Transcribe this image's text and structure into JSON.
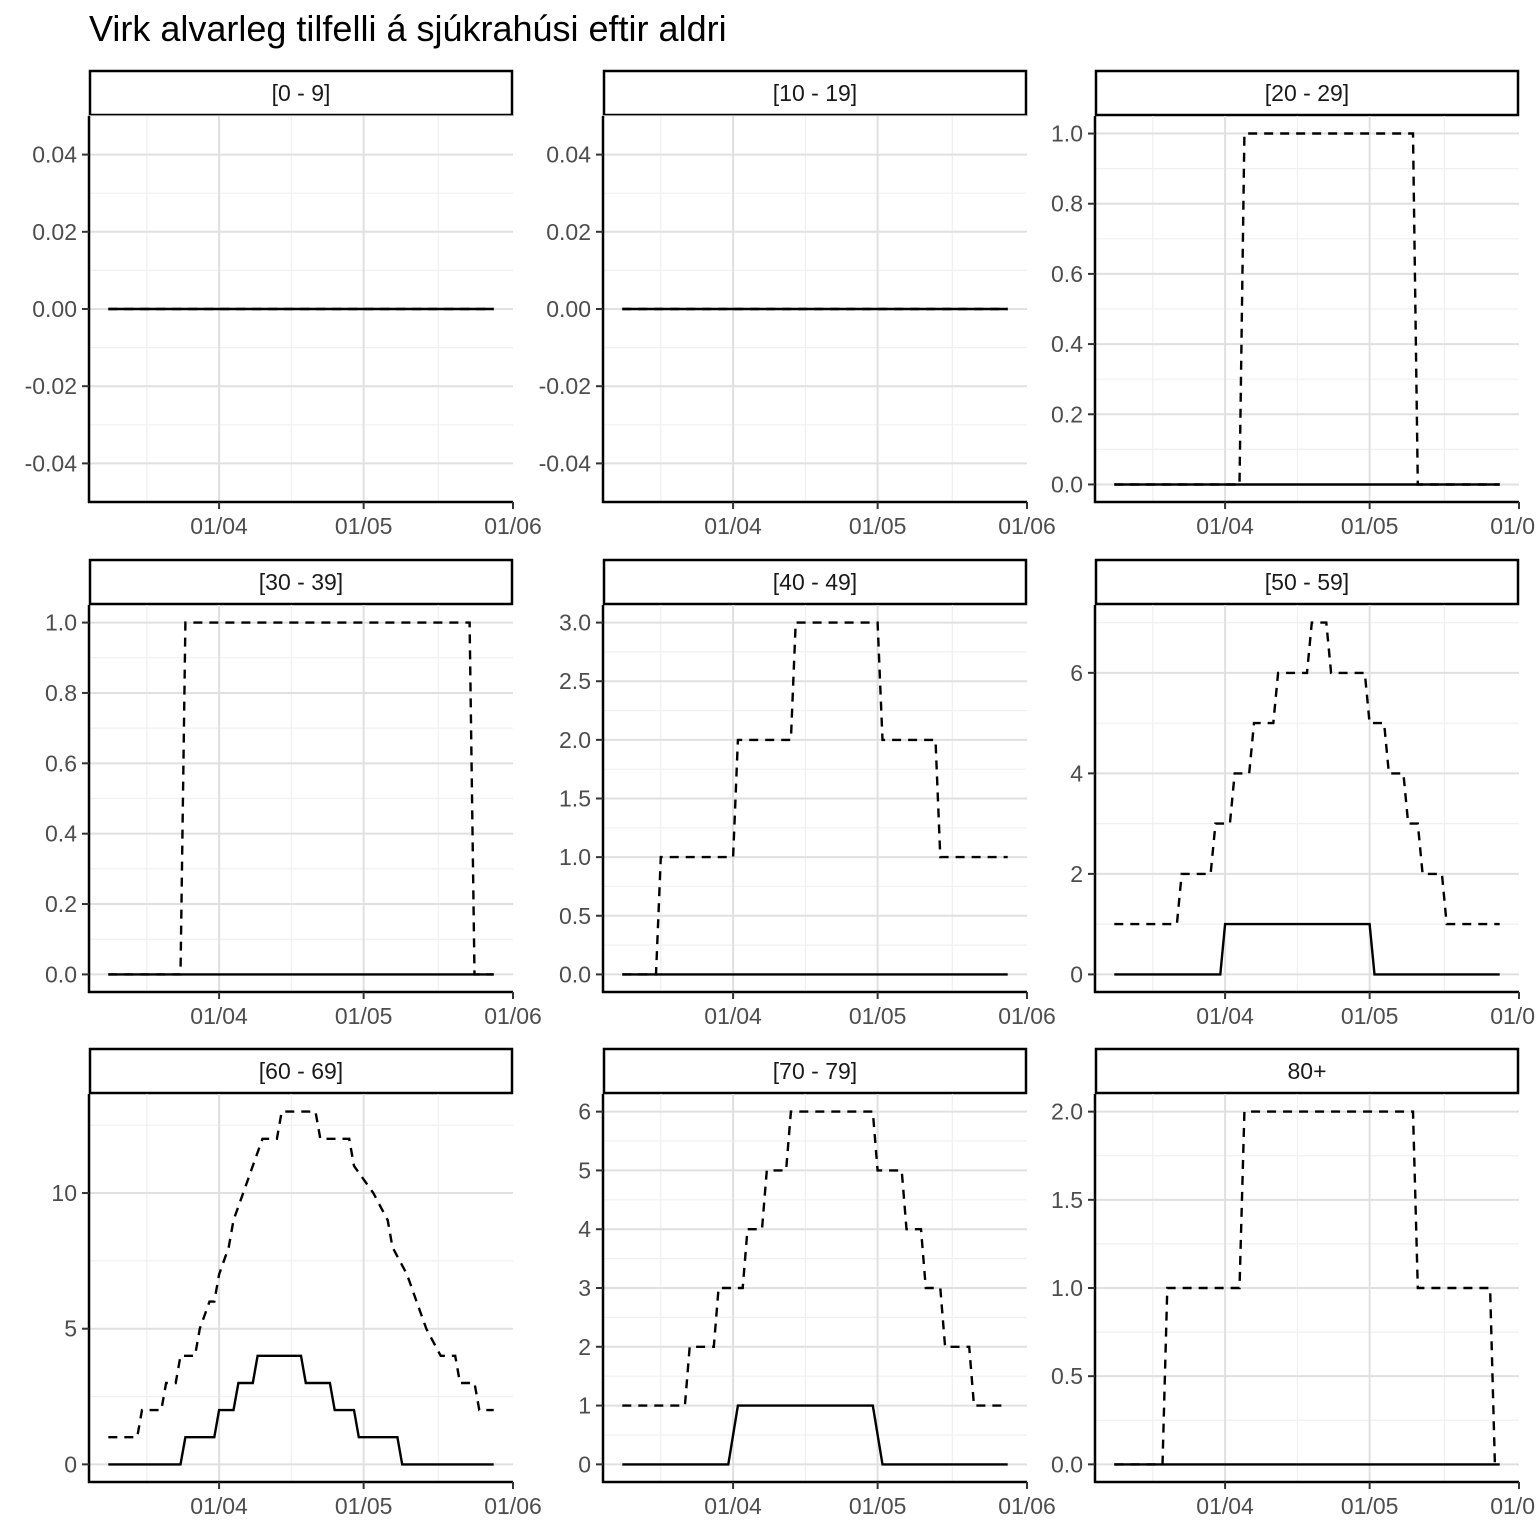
{
  "chart_data": {
    "type": "line",
    "title": "Virk alvarleg tilfelli á sjúkrahúsi eftir aldri",
    "xlabel": "",
    "ylabel": "",
    "x_tick_labels": [
      "01/04",
      "01/05",
      "01/06"
    ],
    "x_tick_dates": [
      "2020-04-01",
      "2020-05-01",
      "2020-06-01"
    ],
    "xlim": [
      "2020-03-05",
      "2020-06-01"
    ],
    "grid": true,
    "legend": "none",
    "series_styles": {
      "median": "solid",
      "upper": "dashed"
    },
    "panels": [
      {
        "label": "[0 - 9]",
        "ylim": [
          -0.05,
          0.05
        ],
        "y_ticks": [
          -0.04,
          -0.02,
          0.0,
          0.02,
          0.04
        ],
        "y_tick_labels": [
          "-0.04",
          "-0.02",
          "0.00",
          "0.02",
          "0.04"
        ],
        "series": [
          {
            "style": "solid",
            "points": [
              [
                "2020-03-09",
                0
              ],
              [
                "2020-05-28",
                0
              ]
            ]
          },
          {
            "style": "dashed",
            "points": [
              [
                "2020-03-09",
                0
              ],
              [
                "2020-05-28",
                0
              ]
            ]
          }
        ]
      },
      {
        "label": "[10 - 19]",
        "ylim": [
          -0.05,
          0.05
        ],
        "y_ticks": [
          -0.04,
          -0.02,
          0.0,
          0.02,
          0.04
        ],
        "y_tick_labels": [
          "-0.04",
          "-0.02",
          "0.00",
          "0.02",
          "0.04"
        ],
        "series": [
          {
            "style": "solid",
            "points": [
              [
                "2020-03-09",
                0
              ],
              [
                "2020-05-28",
                0
              ]
            ]
          },
          {
            "style": "dashed",
            "points": [
              [
                "2020-03-09",
                0
              ],
              [
                "2020-05-28",
                0
              ]
            ]
          }
        ]
      },
      {
        "label": "[20 - 29]",
        "ylim": [
          -0.05,
          1.05
        ],
        "y_ticks": [
          0.0,
          0.2,
          0.4,
          0.6,
          0.8,
          1.0
        ],
        "y_tick_labels": [
          "0.0",
          "0.2",
          "0.4",
          "0.6",
          "0.8",
          "1.0"
        ],
        "series": [
          {
            "style": "solid",
            "points": [
              [
                "2020-03-09",
                0
              ],
              [
                "2020-05-28",
                0
              ]
            ]
          },
          {
            "style": "dashed",
            "points": [
              [
                "2020-03-09",
                0
              ],
              [
                "2020-04-04",
                0
              ],
              [
                "2020-04-05",
                1
              ],
              [
                "2020-05-10",
                1
              ],
              [
                "2020-05-11",
                0
              ],
              [
                "2020-05-28",
                0
              ]
            ]
          }
        ]
      },
      {
        "label": "[30 - 39]",
        "ylim": [
          -0.05,
          1.05
        ],
        "y_ticks": [
          0.0,
          0.2,
          0.4,
          0.6,
          0.8,
          1.0
        ],
        "y_tick_labels": [
          "0.0",
          "0.2",
          "0.4",
          "0.6",
          "0.8",
          "1.0"
        ],
        "series": [
          {
            "style": "solid",
            "points": [
              [
                "2020-03-09",
                0
              ],
              [
                "2020-05-28",
                0
              ]
            ]
          },
          {
            "style": "dashed",
            "points": [
              [
                "2020-03-09",
                0
              ],
              [
                "2020-03-24",
                0
              ],
              [
                "2020-03-25",
                1
              ],
              [
                "2020-05-23",
                1
              ],
              [
                "2020-05-24",
                0
              ],
              [
                "2020-05-28",
                0
              ]
            ]
          }
        ]
      },
      {
        "label": "[40 - 49]",
        "ylim": [
          -0.15,
          3.15
        ],
        "y_ticks": [
          0.0,
          0.5,
          1.0,
          1.5,
          2.0,
          2.5,
          3.0
        ],
        "y_tick_labels": [
          "0.0",
          "0.5",
          "1.0",
          "1.5",
          "2.0",
          "2.5",
          "3.0"
        ],
        "series": [
          {
            "style": "solid",
            "points": [
              [
                "2020-03-09",
                0
              ],
              [
                "2020-05-28",
                0
              ]
            ]
          },
          {
            "style": "dashed",
            "points": [
              [
                "2020-03-09",
                0
              ],
              [
                "2020-03-16",
                0
              ],
              [
                "2020-03-17",
                1
              ],
              [
                "2020-04-01",
                1
              ],
              [
                "2020-04-02",
                2
              ],
              [
                "2020-04-13",
                2
              ],
              [
                "2020-04-14",
                3
              ],
              [
                "2020-05-01",
                3
              ],
              [
                "2020-05-02",
                2
              ],
              [
                "2020-05-13",
                2
              ],
              [
                "2020-05-14",
                1
              ],
              [
                "2020-05-28",
                1
              ]
            ]
          }
        ]
      },
      {
        "label": "[50 - 59]",
        "ylim": [
          -0.35,
          7.35
        ],
        "y_ticks": [
          0,
          2,
          4,
          6
        ],
        "y_tick_labels": [
          "0",
          "2",
          "4",
          "6"
        ],
        "series": [
          {
            "style": "solid",
            "points": [
              [
                "2020-03-09",
                0
              ],
              [
                "2020-03-31",
                0
              ],
              [
                "2020-04-01",
                1
              ],
              [
                "2020-05-01",
                1
              ],
              [
                "2020-05-02",
                0
              ],
              [
                "2020-05-28",
                0
              ]
            ]
          },
          {
            "style": "dashed",
            "points": [
              [
                "2020-03-09",
                1
              ],
              [
                "2020-03-22",
                1
              ],
              [
                "2020-03-23",
                2
              ],
              [
                "2020-03-29",
                2
              ],
              [
                "2020-03-30",
                3
              ],
              [
                "2020-04-02",
                3
              ],
              [
                "2020-04-03",
                4
              ],
              [
                "2020-04-06",
                4
              ],
              [
                "2020-04-07",
                5
              ],
              [
                "2020-04-11",
                5
              ],
              [
                "2020-04-12",
                6
              ],
              [
                "2020-04-18",
                6
              ],
              [
                "2020-04-19",
                7
              ],
              [
                "2020-04-22",
                7
              ],
              [
                "2020-04-23",
                6
              ],
              [
                "2020-04-30",
                6
              ],
              [
                "2020-05-01",
                5
              ],
              [
                "2020-05-04",
                5
              ],
              [
                "2020-05-05",
                4
              ],
              [
                "2020-05-08",
                4
              ],
              [
                "2020-05-09",
                3
              ],
              [
                "2020-05-11",
                3
              ],
              [
                "2020-05-12",
                2
              ],
              [
                "2020-05-16",
                2
              ],
              [
                "2020-05-17",
                1
              ],
              [
                "2020-05-28",
                1
              ]
            ]
          }
        ]
      },
      {
        "label": "[60 - 69]",
        "ylim": [
          -0.65,
          13.65
        ],
        "y_ticks": [
          0,
          5,
          10
        ],
        "y_tick_labels": [
          "0",
          "5",
          "10"
        ],
        "series": [
          {
            "style": "solid",
            "points": [
              [
                "2020-03-09",
                0
              ],
              [
                "2020-03-24",
                0
              ],
              [
                "2020-03-25",
                1
              ],
              [
                "2020-03-31",
                1
              ],
              [
                "2020-04-01",
                2
              ],
              [
                "2020-04-04",
                2
              ],
              [
                "2020-04-05",
                3
              ],
              [
                "2020-04-08",
                3
              ],
              [
                "2020-04-09",
                4
              ],
              [
                "2020-04-18",
                4
              ],
              [
                "2020-04-19",
                3
              ],
              [
                "2020-04-24",
                3
              ],
              [
                "2020-04-25",
                2
              ],
              [
                "2020-04-29",
                2
              ],
              [
                "2020-04-30",
                1
              ],
              [
                "2020-05-08",
                1
              ],
              [
                "2020-05-09",
                0
              ],
              [
                "2020-05-28",
                0
              ]
            ]
          },
          {
            "style": "dashed",
            "points": [
              [
                "2020-03-09",
                1
              ],
              [
                "2020-03-15",
                1
              ],
              [
                "2020-03-16",
                2
              ],
              [
                "2020-03-20",
                2
              ],
              [
                "2020-03-21",
                3
              ],
              [
                "2020-03-23",
                3
              ],
              [
                "2020-03-24",
                4
              ],
              [
                "2020-03-27",
                4
              ],
              [
                "2020-03-28",
                5
              ],
              [
                "2020-03-30",
                6
              ],
              [
                "2020-03-31",
                6
              ],
              [
                "2020-04-01",
                7
              ],
              [
                "2020-04-03",
                8
              ],
              [
                "2020-04-04",
                9
              ],
              [
                "2020-04-06",
                10
              ],
              [
                "2020-04-08",
                11
              ],
              [
                "2020-04-10",
                12
              ],
              [
                "2020-04-13",
                12
              ],
              [
                "2020-04-14",
                13
              ],
              [
                "2020-04-21",
                13
              ],
              [
                "2020-04-22",
                12
              ],
              [
                "2020-04-28",
                12
              ],
              [
                "2020-04-29",
                11
              ],
              [
                "2020-05-03",
                10
              ],
              [
                "2020-05-06",
                9
              ],
              [
                "2020-05-07",
                8
              ],
              [
                "2020-05-10",
                7
              ],
              [
                "2020-05-12",
                6
              ],
              [
                "2020-05-14",
                5
              ],
              [
                "2020-05-17",
                4
              ],
              [
                "2020-05-20",
                4
              ],
              [
                "2020-05-21",
                3
              ],
              [
                "2020-05-24",
                3
              ],
              [
                "2020-05-25",
                2
              ],
              [
                "2020-05-28",
                2
              ]
            ]
          }
        ]
      },
      {
        "label": "[70 - 79]",
        "ylim": [
          -0.3,
          6.3
        ],
        "y_ticks": [
          0,
          1,
          2,
          3,
          4,
          5,
          6
        ],
        "y_tick_labels": [
          "0",
          "1",
          "2",
          "3",
          "4",
          "5",
          "6"
        ],
        "series": [
          {
            "style": "solid",
            "points": [
              [
                "2020-03-09",
                0
              ],
              [
                "2020-03-31",
                0
              ],
              [
                "2020-04-02",
                1
              ],
              [
                "2020-04-30",
                1
              ],
              [
                "2020-05-02",
                0
              ],
              [
                "2020-05-28",
                0
              ]
            ]
          },
          {
            "style": "dashed",
            "points": [
              [
                "2020-03-09",
                1
              ],
              [
                "2020-03-22",
                1
              ],
              [
                "2020-03-23",
                2
              ],
              [
                "2020-03-28",
                2
              ],
              [
                "2020-03-29",
                3
              ],
              [
                "2020-04-03",
                3
              ],
              [
                "2020-04-04",
                4
              ],
              [
                "2020-04-07",
                4
              ],
              [
                "2020-04-08",
                5
              ],
              [
                "2020-04-12",
                5
              ],
              [
                "2020-04-13",
                6
              ],
              [
                "2020-04-30",
                6
              ],
              [
                "2020-05-01",
                5
              ],
              [
                "2020-05-06",
                5
              ],
              [
                "2020-05-07",
                4
              ],
              [
                "2020-05-10",
                4
              ],
              [
                "2020-05-11",
                3
              ],
              [
                "2020-05-14",
                3
              ],
              [
                "2020-05-15",
                2
              ],
              [
                "2020-05-20",
                2
              ],
              [
                "2020-05-21",
                1
              ],
              [
                "2020-05-28",
                1
              ]
            ]
          }
        ]
      },
      {
        "label": "80+",
        "ylim": [
          -0.1,
          2.1
        ],
        "y_ticks": [
          0.0,
          0.5,
          1.0,
          1.5,
          2.0
        ],
        "y_tick_labels": [
          "0.0",
          "0.5",
          "1.0",
          "1.5",
          "2.0"
        ],
        "series": [
          {
            "style": "solid",
            "points": [
              [
                "2020-03-09",
                0
              ],
              [
                "2020-05-28",
                0
              ]
            ]
          },
          {
            "style": "dashed",
            "points": [
              [
                "2020-03-09",
                0
              ],
              [
                "2020-03-19",
                0
              ],
              [
                "2020-03-20",
                1
              ],
              [
                "2020-04-04",
                1
              ],
              [
                "2020-04-05",
                2
              ],
              [
                "2020-05-10",
                2
              ],
              [
                "2020-05-11",
                1
              ],
              [
                "2020-05-26",
                1
              ],
              [
                "2020-05-27",
                0
              ],
              [
                "2020-05-28",
                0
              ]
            ]
          }
        ]
      }
    ]
  }
}
